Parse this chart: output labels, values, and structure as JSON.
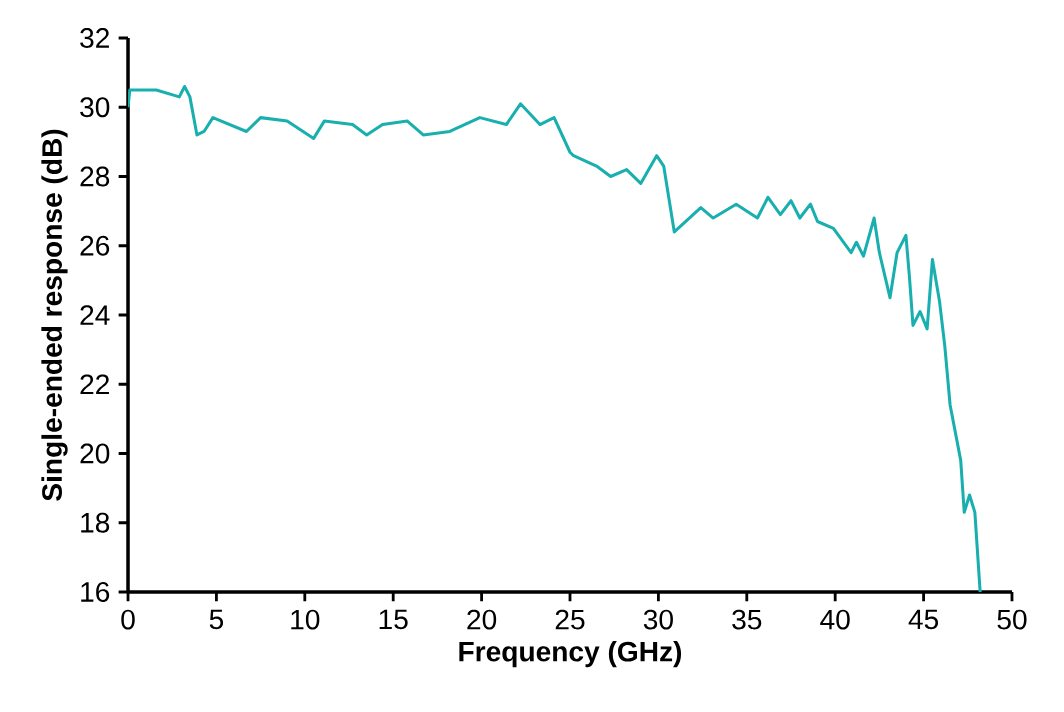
{
  "chart_data": {
    "type": "line",
    "xlabel": "Frequency (GHz)",
    "ylabel": "Single-ended response (dB)",
    "xlim": [
      0,
      50
    ],
    "ylim": [
      16,
      32
    ],
    "xticks": [
      0,
      5,
      10,
      15,
      20,
      25,
      30,
      35,
      40,
      45,
      50
    ],
    "yticks": [
      16,
      18,
      20,
      22,
      24,
      26,
      28,
      30,
      32
    ],
    "grid": false,
    "marker": "none",
    "line_style": "solid",
    "series": [
      {
        "color": "#1aafaf",
        "x": [
          0,
          0.1,
          1.6,
          2.9,
          3.2,
          3.5,
          3.9,
          4.3,
          4.8,
          6.7,
          7.5,
          9.0,
          10.5,
          11.1,
          12.7,
          13.5,
          14.4,
          15.8,
          16.7,
          18.2,
          19.9,
          21.4,
          22.2,
          23.3,
          24.1,
          25.0,
          25.2,
          26.5,
          27.3,
          28.2,
          29.0,
          29.9,
          30.3,
          30.9,
          32.4,
          33.1,
          34.4,
          35.6,
          36.2,
          36.9,
          37.5,
          38.0,
          38.6,
          39.0,
          39.9,
          40.9,
          41.2,
          41.6,
          42.2,
          42.5,
          43.1,
          43.5,
          44.0,
          44.2,
          44.4,
          44.8,
          45.2,
          45.5,
          45.9,
          46.2,
          46.5,
          47.1,
          47.3,
          47.6,
          47.9,
          48.2
        ],
        "values": [
          30.0,
          30.5,
          30.5,
          30.3,
          30.6,
          30.3,
          29.2,
          29.3,
          29.7,
          29.3,
          29.7,
          29.6,
          29.1,
          29.6,
          29.5,
          29.2,
          29.5,
          29.6,
          29.2,
          29.3,
          29.7,
          29.5,
          30.1,
          29.5,
          29.7,
          28.7,
          28.6,
          28.3,
          28.0,
          28.2,
          27.8,
          28.6,
          28.3,
          26.4,
          27.1,
          26.8,
          27.2,
          26.8,
          27.4,
          26.9,
          27.3,
          26.8,
          27.2,
          26.7,
          26.5,
          25.8,
          26.1,
          25.7,
          26.8,
          25.8,
          24.5,
          25.8,
          26.3,
          25.1,
          23.7,
          24.1,
          23.6,
          25.6,
          24.4,
          23.1,
          21.4,
          19.8,
          18.3,
          18.8,
          18.3,
          16.0
        ]
      }
    ]
  }
}
